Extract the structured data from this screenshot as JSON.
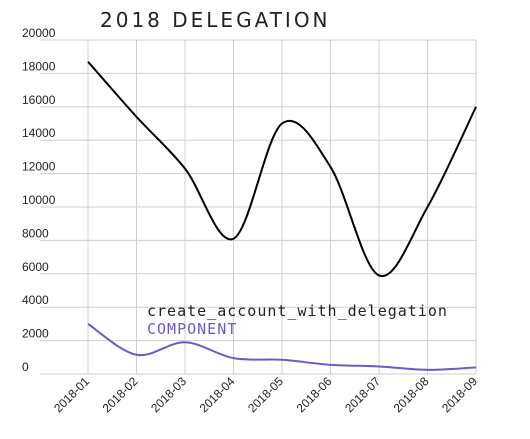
{
  "chart_data": {
    "type": "line",
    "title": "2018 DELEGATION",
    "xlabel": "",
    "ylabel": "",
    "categories": [
      "2018-01",
      "2018-02",
      "2018-03",
      "2018-04",
      "2018-05",
      "2018-06",
      "2018-07",
      "2018-08",
      "2018-09"
    ],
    "yticks": [
      "0",
      "2000",
      "4000",
      "6000",
      "8000",
      "10000",
      "12000",
      "14000",
      "16000",
      "18000",
      "20000"
    ],
    "ylim": [
      0,
      20000
    ],
    "grid": true,
    "legend_position": "bottom-center",
    "series": [
      {
        "name": "create_account_with_delegation",
        "color": "#000000",
        "values": [
          18700,
          15400,
          12300,
          8100,
          15000,
          12400,
          5900,
          10000,
          16000
        ]
      },
      {
        "name": "COMPONENT",
        "color": "#6a5acd",
        "values": [
          3000,
          1150,
          1900,
          950,
          850,
          550,
          450,
          250,
          400
        ]
      }
    ]
  }
}
